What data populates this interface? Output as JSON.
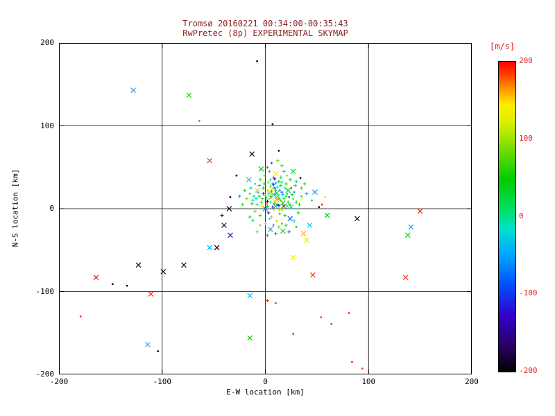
{
  "colors": {
    "background": "#ffffff",
    "axis": "#000000",
    "title_text": "#8b2222",
    "colorbar_label": "#dd2020"
  },
  "chart_data": {
    "type": "scatter",
    "title": "Tromsø 20160221 00:34:00-00:35:43",
    "subtitle": "RwPretec (8p) EXPERIMENTAL SKYMAP",
    "xlabel": "E-W location [km]",
    "ylabel": "N-S location [km]",
    "xlim": [
      -200,
      200
    ],
    "ylim": [
      -200,
      200
    ],
    "xticks": [
      -200,
      -100,
      0,
      100,
      200
    ],
    "yticks": [
      -200,
      -100,
      0,
      100,
      200
    ],
    "grid_lines": [
      -100,
      0,
      100
    ],
    "grid": "on",
    "colorbar": {
      "label": "[m/s]",
      "min": -200,
      "max": 200,
      "ticks": [
        200,
        100,
        0,
        -100,
        -200
      ],
      "stops": [
        [
          0.0,
          "#000000"
        ],
        [
          0.08,
          "#2a0060"
        ],
        [
          0.18,
          "#3200cc"
        ],
        [
          0.28,
          "#0050ff"
        ],
        [
          0.38,
          "#00a8ff"
        ],
        [
          0.46,
          "#00e0cf"
        ],
        [
          0.52,
          "#00e066"
        ],
        [
          0.62,
          "#00cc00"
        ],
        [
          0.72,
          "#77dd00"
        ],
        [
          0.8,
          "#d8ee00"
        ],
        [
          0.86,
          "#ffee00"
        ],
        [
          0.91,
          "#ff9900"
        ],
        [
          0.96,
          "#ff3c00"
        ],
        [
          1.0,
          "#ff0000"
        ]
      ]
    },
    "points_format": [
      "x_km",
      "y_km",
      "velocity_ms",
      "marker"
    ],
    "points": [
      [
        2,
        3,
        30,
        "+"
      ],
      [
        5,
        8,
        -20,
        "+"
      ],
      [
        -3,
        12,
        60,
        "+"
      ],
      [
        8,
        -2,
        120,
        "d"
      ],
      [
        12,
        5,
        40,
        "+"
      ],
      [
        0,
        0,
        -60,
        "x"
      ],
      [
        15,
        10,
        80,
        "+"
      ],
      [
        -8,
        5,
        20,
        "+"
      ],
      [
        3,
        18,
        -40,
        "+"
      ],
      [
        10,
        22,
        50,
        "d"
      ],
      [
        -5,
        -8,
        70,
        "+"
      ],
      [
        18,
        3,
        -100,
        "x"
      ],
      [
        22,
        8,
        30,
        "+"
      ],
      [
        6,
        14,
        90,
        "+"
      ],
      [
        -12,
        10,
        10,
        "+"
      ],
      [
        4,
        -12,
        -30,
        "d"
      ],
      [
        14,
        -6,
        60,
        "+"
      ],
      [
        9,
        9,
        140,
        "x"
      ],
      [
        -2,
        25,
        40,
        "+"
      ],
      [
        7,
        30,
        -50,
        "+"
      ],
      [
        20,
        15,
        20,
        "+"
      ],
      [
        -15,
        18,
        70,
        "d"
      ],
      [
        11,
        -15,
        110,
        "+"
      ],
      [
        25,
        2,
        -20,
        "x"
      ],
      [
        1,
        6,
        180,
        "+"
      ],
      [
        16,
        20,
        -80,
        "+"
      ],
      [
        -6,
        15,
        35,
        "+"
      ],
      [
        13,
        12,
        55,
        "d"
      ],
      [
        3,
        -5,
        -150,
        "+"
      ],
      [
        8,
        17,
        25,
        "x"
      ],
      [
        -10,
        -3,
        65,
        "+"
      ],
      [
        19,
        -8,
        45,
        "+"
      ],
      [
        5,
        35,
        -25,
        "+"
      ],
      [
        27,
        12,
        85,
        "d"
      ],
      [
        -4,
        8,
        15,
        "+"
      ],
      [
        10,
        3,
        -45,
        "x"
      ],
      [
        2,
        22,
        130,
        "+"
      ],
      [
        15,
        28,
        5,
        "+"
      ],
      [
        -7,
        20,
        -65,
        "+"
      ],
      [
        21,
        18,
        75,
        "d"
      ],
      [
        6,
        -10,
        160,
        "+"
      ],
      [
        12,
        15,
        -10,
        "x"
      ],
      [
        -1,
        30,
        50,
        "+"
      ],
      [
        9,
        25,
        -90,
        "+"
      ],
      [
        24,
        5,
        35,
        "+"
      ],
      [
        4,
        12,
        95,
        "d"
      ],
      [
        -9,
        12,
        -35,
        "+"
      ],
      [
        17,
        7,
        60,
        "x"
      ],
      [
        7,
        2,
        -120,
        "+"
      ],
      [
        13,
        33,
        40,
        "+"
      ],
      [
        0,
        16,
        70,
        "+"
      ],
      [
        28,
        20,
        -55,
        "d"
      ],
      [
        -3,
        3,
        145,
        "+"
      ],
      [
        11,
        19,
        20,
        "x"
      ],
      [
        19,
        25,
        -15,
        "+"
      ],
      [
        5,
        27,
        80,
        "+"
      ],
      [
        -13,
        6,
        30,
        "+"
      ],
      [
        23,
        14,
        -70,
        "d"
      ],
      [
        8,
        38,
        55,
        "+"
      ],
      [
        15,
        0,
        100,
        "x"
      ],
      [
        2,
        9,
        -175,
        "+"
      ],
      [
        30,
        8,
        45,
        "+"
      ],
      [
        -6,
        28,
        25,
        "+"
      ],
      [
        10,
        31,
        -40,
        "d"
      ],
      [
        18,
        12,
        65,
        "+"
      ],
      [
        4,
        20,
        110,
        "x"
      ],
      [
        -11,
        15,
        -25,
        "+"
      ],
      [
        26,
        17,
        35,
        "+"
      ],
      [
        7,
        24,
        150,
        "+"
      ],
      [
        14,
        22,
        -60,
        "d"
      ],
      [
        1,
        13,
        40,
        "+"
      ],
      [
        21,
        3,
        90,
        "x"
      ],
      [
        -2,
        18,
        -110,
        "+"
      ],
      [
        9,
        6,
        55,
        "+"
      ],
      [
        16,
        32,
        15,
        "+"
      ],
      [
        35,
        15,
        -30,
        "d"
      ],
      [
        5,
        15,
        70,
        "+"
      ],
      [
        -8,
        22,
        120,
        "x"
      ],
      [
        12,
        26,
        -20,
        "+"
      ],
      [
        20,
        30,
        45,
        "+"
      ],
      [
        3,
        32,
        85,
        "+"
      ],
      [
        25,
        25,
        -75,
        "d"
      ],
      [
        -5,
        35,
        30,
        "+"
      ],
      [
        11,
        11,
        165,
        "x"
      ],
      [
        17,
        17,
        -45,
        "+"
      ],
      [
        6,
        21,
        60,
        "+"
      ],
      [
        29,
        28,
        20,
        "+"
      ],
      [
        -1,
        40,
        95,
        "d"
      ],
      [
        13,
        4,
        -135,
        "+"
      ],
      [
        22,
        22,
        50,
        "x"
      ],
      [
        8,
        29,
        -85,
        "+"
      ],
      [
        33,
        5,
        40,
        "+"
      ],
      [
        4,
        45,
        70,
        "+"
      ],
      [
        -10,
        30,
        -15,
        "d"
      ],
      [
        15,
        38,
        25,
        "+"
      ],
      [
        10,
        42,
        130,
        "x"
      ],
      [
        18,
        45,
        -50,
        "+"
      ],
      [
        2,
        50,
        60,
        "+"
      ],
      [
        24,
        35,
        35,
        "+"
      ],
      [
        6,
        55,
        -95,
        "d"
      ],
      [
        12,
        58,
        80,
        "+"
      ],
      [
        -4,
        48,
        45,
        "x"
      ],
      [
        30,
        33,
        15,
        "+"
      ],
      [
        9,
        36,
        -160,
        "+"
      ],
      [
        16,
        52,
        55,
        "+"
      ],
      [
        21,
        40,
        100,
        "d"
      ],
      [
        -14,
        25,
        -40,
        "+"
      ],
      [
        27,
        45,
        30,
        "x"
      ],
      [
        35,
        25,
        70,
        "+"
      ],
      [
        40,
        18,
        -65,
        "+"
      ],
      [
        38,
        30,
        40,
        "+"
      ],
      [
        45,
        10,
        20,
        "d"
      ],
      [
        -18,
        12,
        85,
        "+"
      ],
      [
        -16,
        35,
        -30,
        "x"
      ],
      [
        -20,
        22,
        55,
        "+"
      ],
      [
        0,
        -18,
        115,
        "+"
      ],
      [
        8,
        -20,
        -45,
        "+"
      ],
      [
        16,
        -18,
        65,
        "d"
      ],
      [
        -12,
        -14,
        35,
        "+"
      ],
      [
        24,
        -12,
        -85,
        "x"
      ],
      [
        32,
        -5,
        50,
        "+"
      ],
      [
        -22,
        5,
        25,
        "+"
      ],
      [
        -25,
        15,
        -55,
        "+"
      ],
      [
        36,
        12,
        140,
        "d"
      ],
      [
        13,
        -22,
        75,
        "+"
      ],
      [
        5,
        -25,
        -35,
        "x"
      ],
      [
        20,
        -20,
        45,
        "+"
      ],
      [
        -15,
        -10,
        60,
        "+"
      ],
      [
        28,
        -15,
        -15,
        "+"
      ],
      [
        -5,
        -20,
        90,
        "d"
      ],
      [
        10,
        -30,
        -70,
        "+"
      ],
      [
        17,
        -27,
        30,
        "x"
      ],
      [
        2,
        -32,
        50,
        "+"
      ],
      [
        23,
        -28,
        -105,
        "+"
      ],
      [
        -8,
        -28,
        70,
        "+"
      ],
      [
        30,
        -22,
        40,
        "d"
      ],
      [
        -35,
        0,
        -190,
        "x"
      ],
      [
        -42,
        -8,
        -185,
        "+"
      ],
      [
        52,
        2,
        -190,
        "d"
      ],
      [
        58,
        14,
        120,
        "d"
      ],
      [
        48,
        20,
        -60,
        "x"
      ],
      [
        55,
        5,
        190,
        "d"
      ],
      [
        60,
        -8,
        35,
        "x"
      ],
      [
        -28,
        40,
        -190,
        "d"
      ],
      [
        -128,
        143,
        -50,
        "x"
      ],
      [
        -74,
        137,
        60,
        "x"
      ],
      [
        -54,
        58,
        185,
        "x"
      ],
      [
        -13,
        66,
        -195,
        "x"
      ],
      [
        13,
        70,
        -190,
        "d"
      ],
      [
        -34,
        14,
        -185,
        "d"
      ],
      [
        -47,
        -47,
        -190,
        "x"
      ],
      [
        -54,
        -47,
        -45,
        "x"
      ],
      [
        -34,
        -32,
        -120,
        "x"
      ],
      [
        -40,
        -20,
        -180,
        "x"
      ],
      [
        -123,
        -68,
        -190,
        "x"
      ],
      [
        -99,
        -76,
        -190,
        "x"
      ],
      [
        -79,
        -68,
        -185,
        "x"
      ],
      [
        -164,
        -83,
        195,
        "x"
      ],
      [
        -134,
        -93,
        -195,
        "d"
      ],
      [
        -111,
        -103,
        190,
        "x"
      ],
      [
        -179,
        -130,
        190,
        "d"
      ],
      [
        -104,
        -172,
        -190,
        "d"
      ],
      [
        -114,
        -164,
        -40,
        "x"
      ],
      [
        -15,
        -156,
        55,
        "x"
      ],
      [
        -15,
        -105,
        -45,
        "x"
      ],
      [
        2,
        -111,
        195,
        "+"
      ],
      [
        27,
        -59,
        145,
        "x"
      ],
      [
        40,
        -38,
        120,
        "x"
      ],
      [
        46,
        -80,
        190,
        "x"
      ],
      [
        10,
        -114,
        185,
        "d"
      ],
      [
        27,
        -151,
        190,
        "d"
      ],
      [
        54,
        -131,
        185,
        "d"
      ],
      [
        64,
        -139,
        190,
        "d"
      ],
      [
        81,
        -126,
        185,
        "d"
      ],
      [
        84,
        -185,
        190,
        "d"
      ],
      [
        94,
        -193,
        185,
        "d"
      ],
      [
        89,
        -12,
        -190,
        "x"
      ],
      [
        141,
        -22,
        -45,
        "x"
      ],
      [
        138,
        -32,
        55,
        "x"
      ],
      [
        136,
        -83,
        190,
        "x"
      ],
      [
        150,
        -3,
        190,
        "x"
      ],
      [
        7,
        102,
        -180,
        "d"
      ],
      [
        -64,
        106,
        60,
        "d"
      ],
      [
        34,
        37,
        -185,
        "d"
      ],
      [
        43,
        -20,
        -30,
        "x"
      ],
      [
        37,
        -30,
        160,
        "x"
      ],
      [
        -8,
        178,
        -185,
        "d"
      ],
      [
        -148,
        -91,
        -190,
        "d"
      ]
    ]
  }
}
